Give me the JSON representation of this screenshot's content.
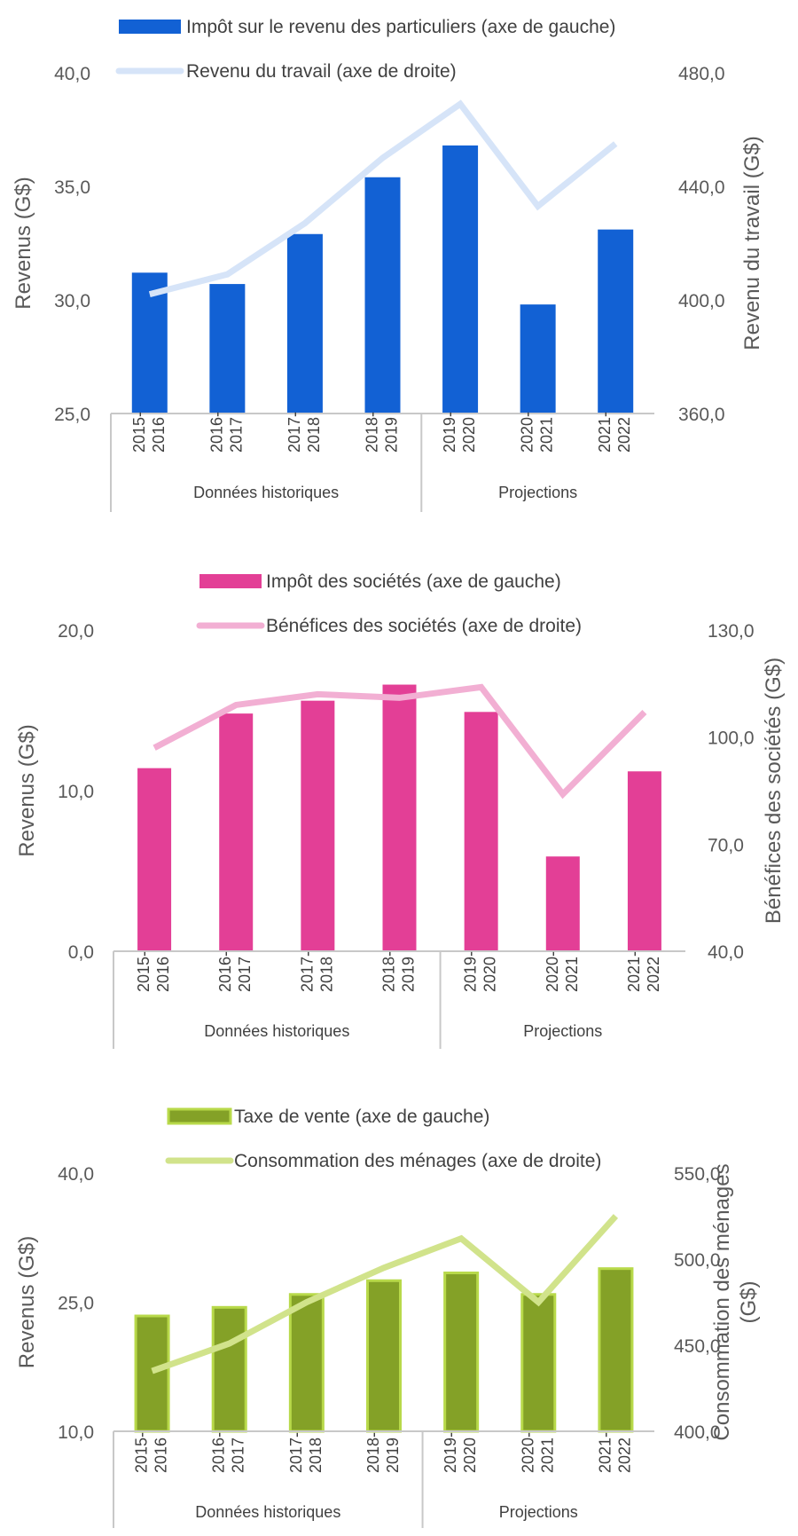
{
  "chart_data": [
    {
      "type": "bar",
      "categories": [
        "2015-\n2016",
        "2016-\n2017",
        "2017-\n2018",
        "2018-\n2019",
        "2019-\n2020",
        "2020-\n2021",
        "2021-\n2022"
      ],
      "groups": [
        {
          "label": "Données historiques",
          "from": 0,
          "to": 3
        },
        {
          "label": "Projections",
          "from": 4,
          "to": 6
        }
      ],
      "series": [
        {
          "name": "Impôt sur le revenu des particuliers (axe de gauche)",
          "type": "bar",
          "axis": "left",
          "color": "#1261d4",
          "values": [
            31.2,
            30.7,
            32.9,
            35.4,
            36.8,
            29.8,
            33.1
          ]
        },
        {
          "name": "Revenu du travail (axe de droite)",
          "type": "line",
          "axis": "right",
          "color": "#d6e4f8",
          "values": [
            402,
            409,
            427,
            450,
            469,
            433,
            455
          ]
        }
      ],
      "ylabel": "Revenus (G$)",
      "y2label": "Revenu du travail (G$)",
      "ylim": [
        25.0,
        40.0
      ],
      "yticks": [
        "40,0",
        "35,0",
        "30,0",
        "25,0"
      ],
      "y2lim": [
        360.0,
        480.0
      ],
      "y2ticks": [
        "480,0",
        "440,0",
        "400,0",
        "360,0"
      ],
      "grid": false,
      "legend": "top"
    },
    {
      "type": "bar",
      "categories": [
        "2015-\n2016",
        "2016-\n2017",
        "2017-\n2018",
        "2018-\n2019",
        "2019-\n2020",
        "2020-\n2021",
        "2021-\n2022"
      ],
      "groups": [
        {
          "label": "Données historiques",
          "from": 0,
          "to": 3
        },
        {
          "label": "Projections",
          "from": 4,
          "to": 6
        }
      ],
      "series": [
        {
          "name": "Impôt des sociétés (axe de gauche)",
          "type": "bar",
          "axis": "left",
          "color": "#e33f96",
          "values": [
            11.4,
            14.8,
            15.6,
            16.6,
            14.9,
            5.9,
            11.2
          ]
        },
        {
          "name": "Bénéfices des sociétés (axe de droite)",
          "type": "line",
          "axis": "right",
          "color": "#f2afd3",
          "values": [
            97,
            109,
            112,
            111,
            114,
            84,
            107
          ]
        }
      ],
      "ylabel": "Revenus (G$)",
      "y2label": "Bénéfices des sociétés (G$)",
      "ylim": [
        0.0,
        20.0
      ],
      "yticks": [
        "20,0",
        "10,0",
        "0,0"
      ],
      "y2lim": [
        40.0,
        130.0
      ],
      "y2ticks": [
        "130,0",
        "100,0",
        "70,0",
        "40,0"
      ],
      "grid": false,
      "legend": "top"
    },
    {
      "type": "bar",
      "categories": [
        "2015-\n2016",
        "2016-\n2017",
        "2017-\n2018",
        "2018-\n2019",
        "2019-\n2020",
        "2020-\n2021",
        "2021-\n2022"
      ],
      "groups": [
        {
          "label": "Données historiques",
          "from": 0,
          "to": 3
        },
        {
          "label": "Projections",
          "from": 4,
          "to": 6
        }
      ],
      "series": [
        {
          "name": "Taxe de vente (axe de gauche)",
          "type": "bar",
          "axis": "left",
          "color": "#84a127",
          "stroke": "#b8d94a",
          "values": [
            23.4,
            24.4,
            25.9,
            27.5,
            28.4,
            25.9,
            28.9
          ]
        },
        {
          "name": "Consommation des ménages (axe de droite)",
          "type": "line",
          "axis": "right",
          "color": "#d1e38b",
          "values": [
            435,
            451,
            475,
            495,
            512,
            475,
            525
          ]
        }
      ],
      "ylabel": "Revenus (G$)",
      "y2label": "Consommation des ménages\n(G$)",
      "ylim": [
        10.0,
        40.0
      ],
      "yticks": [
        "40,0",
        "25,0",
        "10,0"
      ],
      "y2lim": [
        400.0,
        550.0
      ],
      "y2ticks": [
        "550,0",
        "500,0",
        "450,0",
        "400,0"
      ],
      "grid": false,
      "legend": "top"
    }
  ]
}
